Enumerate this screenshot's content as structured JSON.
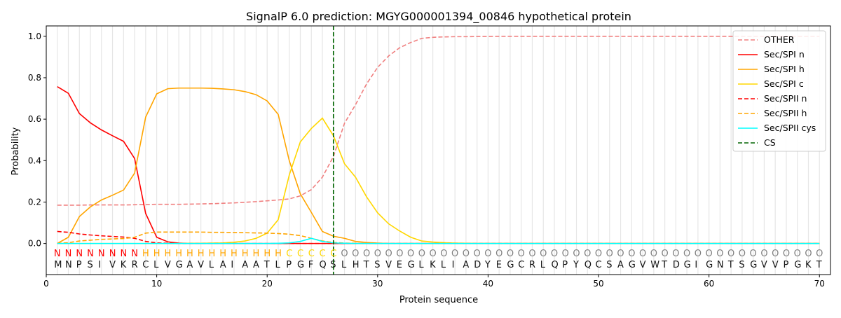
{
  "chart_data": {
    "type": "line",
    "title": "SignalP 6.0 prediction: MGYG000001394_00846 hypothetical protein",
    "xlabel": "Protein sequence",
    "ylabel": "Probability",
    "xlim": [
      0,
      71
    ],
    "ylim": [
      -0.15,
      1.05
    ],
    "xticks": [
      0,
      10,
      20,
      30,
      40,
      50,
      60,
      70
    ],
    "yticks": [
      0.0,
      0.2,
      0.4,
      0.6,
      0.8,
      1.0
    ],
    "grid": "vertical lines at each residue",
    "legend": "top-right",
    "sequence": "MNPSIVKRCLVGAVLAIAATLPGFQSLHTSVEGLKLIADYEGCRLQPYQCSAGVWTDGIGNTSGVVPGKT",
    "labels": "NNNNNNNNHHHHHHHHHHHHHCCCCCOOOOOOOOOOOOOOOOOOOOOOOOOOOOOOOOOOOOOOOOOOOO",
    "label_colors": {
      "N": "#ff0000",
      "H": "#ffa500",
      "C": "#ffd700",
      "O": "#808080"
    },
    "cs_position": 26,
    "series": [
      {
        "name": "OTHER",
        "color": "#f08080",
        "dash": true,
        "values": [
          0.185,
          0.185,
          0.185,
          0.186,
          0.186,
          0.186,
          0.186,
          0.187,
          0.188,
          0.189,
          0.189,
          0.189,
          0.19,
          0.191,
          0.192,
          0.194,
          0.196,
          0.199,
          0.202,
          0.206,
          0.21,
          0.215,
          0.23,
          0.26,
          0.32,
          0.42,
          0.58,
          0.67,
          0.77,
          0.85,
          0.905,
          0.945,
          0.97,
          0.99,
          0.995,
          0.997,
          0.998,
          0.998,
          0.999,
          0.999,
          1,
          1,
          1,
          1,
          1,
          1,
          1,
          1,
          1,
          1,
          1,
          1,
          1,
          1,
          1,
          1,
          1,
          1,
          1,
          1,
          1,
          1,
          1,
          1,
          1,
          1,
          1,
          1,
          1,
          1
        ]
      },
      {
        "name": "Sec/SPI n",
        "color": "#ff0000",
        "dash": false,
        "values": [
          0.757,
          0.725,
          0.627,
          0.582,
          0.548,
          0.52,
          0.493,
          0.41,
          0.145,
          0.03,
          0.008,
          0.002,
          0,
          0,
          0,
          0,
          0,
          0,
          0,
          0,
          0,
          0,
          0,
          0,
          0,
          0,
          0,
          0,
          0,
          0,
          0,
          0,
          0,
          0,
          0,
          0,
          0,
          0,
          0,
          0,
          0,
          0,
          0,
          0,
          0,
          0,
          0,
          0,
          0,
          0,
          0,
          0,
          0,
          0,
          0,
          0,
          0,
          0,
          0,
          0,
          0,
          0,
          0,
          0,
          0,
          0,
          0,
          0,
          0,
          0
        ]
      },
      {
        "name": "Sec/SPI h",
        "color": "#ffa500",
        "dash": false,
        "values": [
          0.0,
          0.03,
          0.13,
          0.177,
          0.21,
          0.233,
          0.258,
          0.34,
          0.61,
          0.722,
          0.747,
          0.75,
          0.75,
          0.75,
          0.749,
          0.746,
          0.742,
          0.733,
          0.718,
          0.688,
          0.623,
          0.4,
          0.24,
          0.15,
          0.058,
          0.035,
          0.025,
          0.01,
          0.005,
          0.002,
          0,
          0,
          0,
          0,
          0,
          0,
          0,
          0,
          0,
          0,
          0,
          0,
          0,
          0,
          0,
          0,
          0,
          0,
          0,
          0,
          0,
          0,
          0,
          0,
          0,
          0,
          0,
          0,
          0,
          0,
          0,
          0,
          0,
          0,
          0,
          0,
          0,
          0,
          0,
          0
        ]
      },
      {
        "name": "Sec/SPI c",
        "color": "#ffd700",
        "dash": false,
        "values": [
          0,
          0,
          0,
          0,
          0,
          0,
          0,
          0,
          0,
          0,
          0,
          0,
          0.001,
          0.001,
          0.002,
          0.003,
          0.006,
          0.012,
          0.025,
          0.05,
          0.115,
          0.33,
          0.49,
          0.555,
          0.605,
          0.52,
          0.385,
          0.32,
          0.225,
          0.148,
          0.095,
          0.06,
          0.03,
          0.012,
          0.007,
          0.004,
          0.002,
          0.001,
          0,
          0,
          0,
          0,
          0,
          0,
          0,
          0,
          0,
          0,
          0,
          0,
          0,
          0,
          0,
          0,
          0,
          0,
          0,
          0,
          0,
          0,
          0,
          0,
          0,
          0,
          0,
          0,
          0,
          0,
          0,
          0
        ]
      },
      {
        "name": "Sec/SPII n",
        "color": "#ff0000",
        "dash": true,
        "values": [
          0.058,
          0.054,
          0.046,
          0.041,
          0.037,
          0.034,
          0.031,
          0.025,
          0.01,
          0.003,
          0.001,
          0,
          0,
          0,
          0,
          0,
          0,
          0,
          0,
          0,
          0,
          0,
          0,
          0,
          0,
          0,
          0,
          0,
          0,
          0,
          0,
          0,
          0,
          0,
          0,
          0,
          0,
          0,
          0,
          0,
          0,
          0,
          0,
          0,
          0,
          0,
          0,
          0,
          0,
          0,
          0,
          0,
          0,
          0,
          0,
          0,
          0,
          0,
          0,
          0,
          0,
          0,
          0,
          0,
          0,
          0,
          0,
          0,
          0,
          0
        ]
      },
      {
        "name": "Sec/SPII h",
        "color": "#ffa500",
        "dash": true,
        "values": [
          0.0,
          0.004,
          0.012,
          0.016,
          0.02,
          0.022,
          0.024,
          0.03,
          0.05,
          0.055,
          0.055,
          0.055,
          0.055,
          0.055,
          0.054,
          0.054,
          0.053,
          0.052,
          0.051,
          0.05,
          0.048,
          0.045,
          0.038,
          0.025,
          0.012,
          0.005,
          0.002,
          0.001,
          0,
          0,
          0,
          0,
          0,
          0,
          0,
          0,
          0,
          0,
          0,
          0,
          0,
          0,
          0,
          0,
          0,
          0,
          0,
          0,
          0,
          0,
          0,
          0,
          0,
          0,
          0,
          0,
          0,
          0,
          0,
          0,
          0,
          0,
          0,
          0,
          0,
          0,
          0,
          0,
          0,
          0
        ]
      },
      {
        "name": "Sec/SPII cys",
        "color": "#00ffff",
        "dash": false,
        "values": [
          0,
          0,
          0,
          0,
          0,
          0,
          0,
          0,
          0,
          0,
          0,
          0,
          0,
          0,
          0,
          0,
          0,
          0,
          0,
          0,
          0.001,
          0.003,
          0.01,
          0.025,
          0.01,
          0.003,
          0.001,
          0,
          0,
          0,
          0,
          0,
          0,
          0,
          0,
          0,
          0,
          0,
          0,
          0,
          0,
          0,
          0,
          0,
          0,
          0,
          0,
          0,
          0,
          0,
          0,
          0,
          0,
          0,
          0,
          0,
          0,
          0,
          0,
          0,
          0,
          0,
          0,
          0,
          0,
          0,
          0,
          0,
          0,
          0
        ]
      }
    ],
    "cs_legend": {
      "name": "CS",
      "color": "#006400"
    }
  }
}
